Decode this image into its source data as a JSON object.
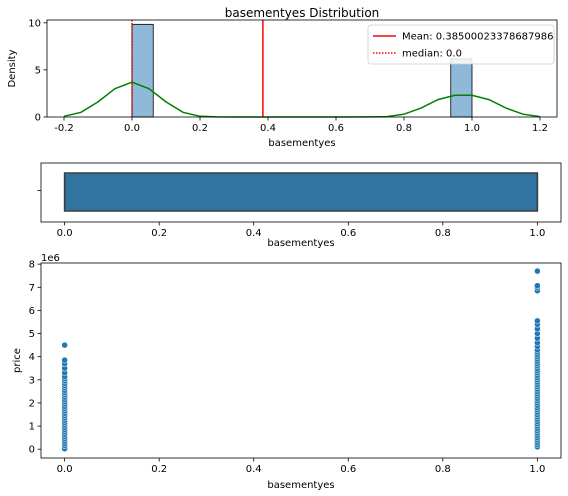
{
  "chart_data": [
    {
      "type": "histogram+kde",
      "title": "basementyes Distribution",
      "xlabel": "basementyes",
      "ylabel": "Density",
      "xlim": [
        -0.25,
        1.25
      ],
      "ylim": [
        0,
        10.3
      ],
      "xticks": [
        "-0.2",
        "0.0",
        "0.2",
        "0.4",
        "0.6",
        "0.8",
        "1.0",
        "1.2"
      ],
      "xtick_values": [
        -0.2,
        0.0,
        0.2,
        0.4,
        0.6,
        0.8,
        1.0,
        1.2
      ],
      "yticks": [
        "0",
        "5",
        "10"
      ],
      "ytick_values": [
        0,
        5,
        10
      ],
      "bars": [
        {
          "x0": 0.0,
          "x1": 0.0625,
          "density": 9.84
        },
        {
          "x0": 0.9375,
          "x1": 1.0,
          "density": 6.16
        }
      ],
      "kde": {
        "x": [
          -0.2,
          -0.15,
          -0.1,
          -0.05,
          0.0,
          0.05,
          0.1,
          0.15,
          0.2,
          0.25,
          0.3,
          0.4,
          0.5,
          0.6,
          0.7,
          0.75,
          0.8,
          0.85,
          0.9,
          0.95,
          1.0,
          1.05,
          1.1,
          1.15,
          1.2
        ],
        "y": [
          0.07,
          0.5,
          1.6,
          3.0,
          3.7,
          3.0,
          1.6,
          0.5,
          0.07,
          0.01,
          0.0,
          0.0,
          0.0,
          0.0,
          0.01,
          0.04,
          0.3,
          0.95,
          1.85,
          2.3,
          2.3,
          1.85,
          0.95,
          0.3,
          0.04
        ]
      },
      "mean": 0.38500023378687986,
      "median": 0.0,
      "legend": {
        "placement": "upper right",
        "entries": [
          {
            "label": "Mean: 0.38500023378687986",
            "color": "#ff0000",
            "style": "solid"
          },
          {
            "label": "median: 0.0",
            "color": "#ff0000",
            "style": "dotted"
          }
        ]
      },
      "colors": {
        "bars": "#8fb9d9",
        "kde": "#008000",
        "mean": "#ff0000",
        "median": "#ff0000"
      }
    },
    {
      "type": "box",
      "xlabel": "basementyes",
      "ylabel": "",
      "xlim": [
        -0.05,
        1.05
      ],
      "xticks": [
        "0.0",
        "0.2",
        "0.4",
        "0.6",
        "0.8",
        "1.0"
      ],
      "xtick_values": [
        0.0,
        0.2,
        0.4,
        0.6,
        0.8,
        1.0
      ],
      "box": {
        "min": 0.0,
        "q1": 0.0,
        "median": 0.0,
        "q3": 1.0,
        "max": 1.0
      },
      "colors": {
        "box": "#3274a1"
      }
    },
    {
      "type": "scatter",
      "xlabel": "basementyes",
      "ylabel": "price",
      "y_offset_label": "1e6",
      "xlim": [
        -0.05,
        1.05
      ],
      "ylim": [
        -0.38,
        8.05
      ],
      "xticks": [
        "0.0",
        "0.2",
        "0.4",
        "0.6",
        "0.8",
        "1.0"
      ],
      "xtick_values": [
        0.0,
        0.2,
        0.4,
        0.6,
        0.8,
        1.0
      ],
      "yticks": [
        "0",
        "1",
        "2",
        "3",
        "4",
        "5",
        "6",
        "7",
        "8"
      ],
      "ytick_values": [
        0,
        1,
        2,
        3,
        4,
        5,
        6,
        7,
        8
      ],
      "series": [
        {
          "x": 0.0,
          "y": [
            0.02,
            0.15,
            0.25,
            0.35,
            0.45,
            0.55,
            0.65,
            0.75,
            0.85,
            0.95,
            1.05,
            1.15,
            1.25,
            1.35,
            1.45,
            1.55,
            1.65,
            1.75,
            1.85,
            1.95,
            2.05,
            2.15,
            2.25,
            2.35,
            2.45,
            2.55,
            2.65,
            2.75,
            2.85,
            2.95,
            3.05,
            3.15,
            3.3,
            3.5,
            3.7,
            3.85,
            4.5
          ]
        },
        {
          "x": 1.0,
          "y": [
            0.1,
            0.2,
            0.3,
            0.4,
            0.5,
            0.6,
            0.7,
            0.8,
            0.9,
            1.0,
            1.1,
            1.2,
            1.3,
            1.4,
            1.5,
            1.6,
            1.7,
            1.8,
            1.9,
            2.0,
            2.1,
            2.2,
            2.3,
            2.4,
            2.5,
            2.6,
            2.7,
            2.8,
            2.9,
            3.0,
            3.1,
            3.2,
            3.3,
            3.4,
            3.5,
            3.6,
            3.7,
            3.8,
            3.9,
            4.0,
            4.1,
            4.2,
            4.3,
            4.45,
            4.6,
            4.8,
            5.0,
            5.2,
            5.4,
            5.55,
            6.85,
            7.0,
            7.07,
            7.7
          ]
        }
      ],
      "colors": {
        "points": "#1f77b4"
      }
    }
  ]
}
